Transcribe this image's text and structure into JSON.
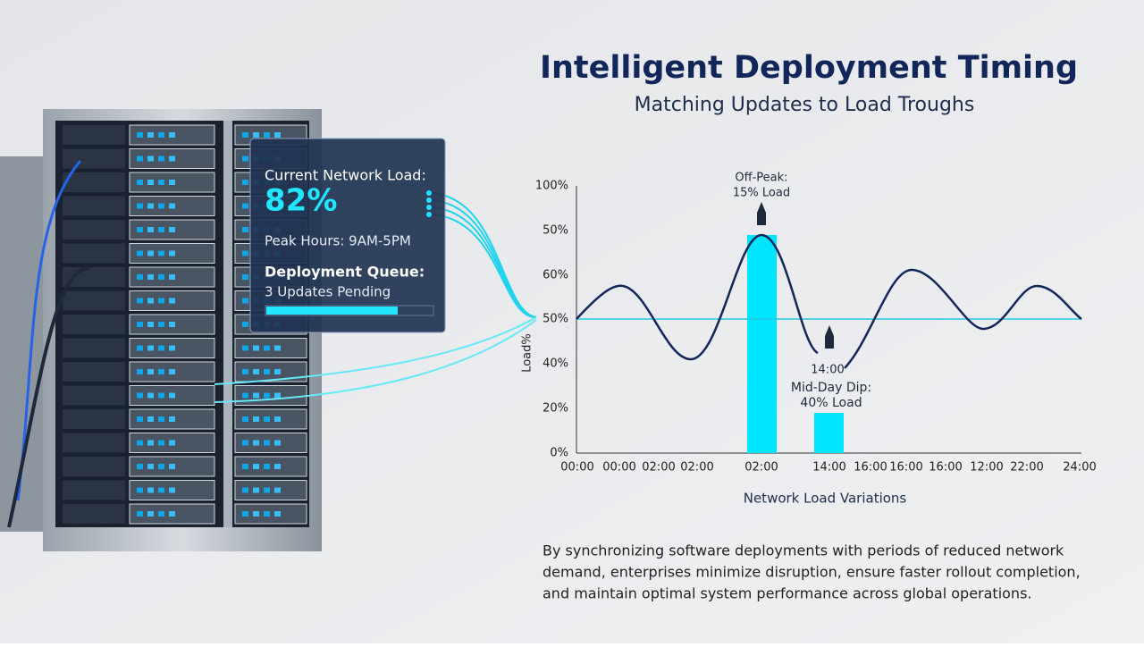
{
  "header": {
    "title": "Intelligent Deployment Timing",
    "subtitle": "Matching Updates to Load Troughs"
  },
  "panel": {
    "load_label": "Current Network Load:",
    "load_value": "82%",
    "peak_hours": "Peak Hours: 9AM-5PM",
    "queue_label": "Deployment Queue:",
    "queue_status": "3 Updates Pending"
  },
  "chart": {
    "y_labels": [
      "100%",
      "50%",
      "60%",
      "50%",
      "40%",
      "20%",
      "0%"
    ],
    "x_labels": [
      "00:00",
      "00:00",
      "02:00",
      "02:00",
      "02:00",
      "14:00",
      "16:00",
      "16:00",
      "16:00",
      "12:00",
      "22:00",
      "24:00"
    ],
    "y_axis_label": "Load%",
    "x_axis_label": "Network Load Variations",
    "off_peak": [
      "Off-Peak:",
      "15% Load"
    ],
    "dip_time": "14:00",
    "mid_day": [
      "Mid-Day Dip:",
      "40% Load"
    ]
  },
  "body": {
    "lines": [
      "By synchronizing software deployments with periods of reduced network",
      "demand, enterprises minimize disruption, ensure faster rollout completion,",
      "and maintain optimal system performance across global operations."
    ]
  }
}
